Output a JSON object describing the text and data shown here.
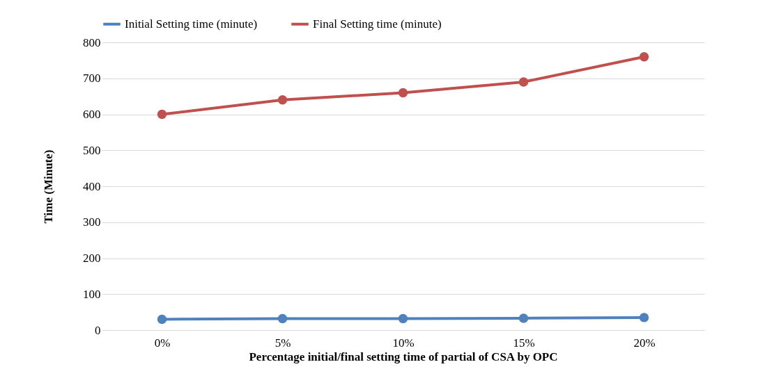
{
  "chart_data": {
    "type": "line",
    "xlabel": "Percentage initial/final setting time of partial of CSA by OPC",
    "ylabel": "Time (Minute)",
    "categories": [
      "0%",
      "5%",
      "10%",
      "15%",
      "20%"
    ],
    "series": [
      {
        "name": "Initial Setting time (minute)",
        "color": "#4f81bd",
        "values": [
          30,
          32,
          32,
          33,
          35
        ]
      },
      {
        "name": "Final Setting time (minute)",
        "color": "#c0504d",
        "values": [
          600,
          640,
          660,
          690,
          760
        ]
      }
    ],
    "ylim": [
      0,
      800
    ],
    "yticks": [
      0,
      100,
      200,
      300,
      400,
      500,
      600,
      700,
      800
    ],
    "grid": "y",
    "legend": "top",
    "marker": "circle",
    "line_style": "solid"
  }
}
